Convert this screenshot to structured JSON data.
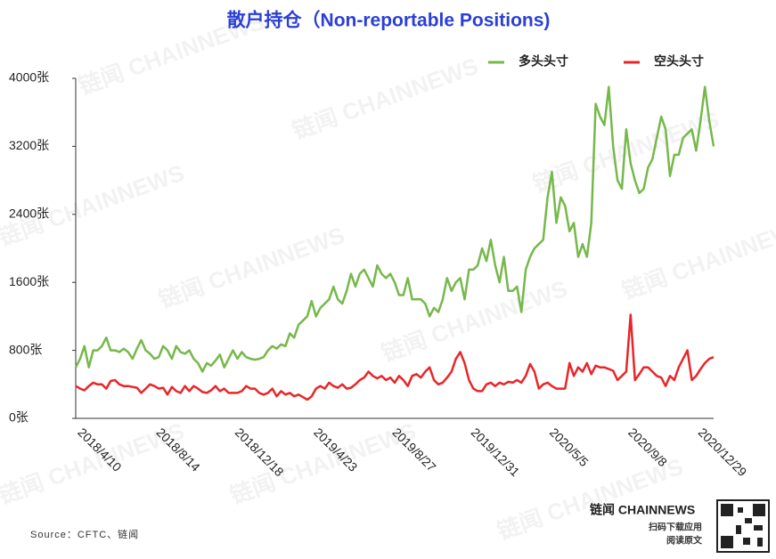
{
  "chart_data": {
    "type": "line",
    "title": "散户持仓（Non-reportable Positions)",
    "source": "Source：CFTC、链闻",
    "watermark": "链闻 CHAINNEWS",
    "footer": {
      "brand": "链闻 CHAINNEWS",
      "line1": "扫码下载应用",
      "line2": "阅读原文"
    },
    "legend": "top-right",
    "categories": [
      "2018/4/10",
      null,
      null,
      null,
      null,
      null,
      null,
      null,
      null,
      null,
      null,
      null,
      null,
      null,
      null,
      null,
      null,
      null,
      "2018/8/14",
      null,
      null,
      null,
      null,
      null,
      null,
      null,
      null,
      null,
      null,
      null,
      null,
      null,
      null,
      null,
      null,
      null,
      "2018/12/18",
      null,
      null,
      null,
      null,
      null,
      null,
      null,
      null,
      null,
      null,
      null,
      null,
      null,
      null,
      null,
      null,
      null,
      "2019/4/23",
      null,
      null,
      null,
      null,
      null,
      null,
      null,
      null,
      null,
      null,
      null,
      null,
      null,
      null,
      null,
      null,
      null,
      "2019/8/27",
      null,
      null,
      null,
      null,
      null,
      null,
      null,
      null,
      null,
      null,
      null,
      null,
      null,
      null,
      null,
      null,
      null,
      "2019/12/31",
      null,
      null,
      null,
      null,
      null,
      null,
      null,
      null,
      null,
      null,
      null,
      null,
      null,
      null,
      null,
      null,
      null,
      "2020/5/5",
      null,
      null,
      null,
      null,
      null,
      null,
      null,
      null,
      null,
      null,
      null,
      null,
      null,
      null,
      null,
      null,
      null,
      "2020/9/8",
      null,
      null,
      null,
      null,
      null,
      null,
      null,
      null,
      null,
      null,
      null,
      null,
      null,
      null,
      null,
      "2020/12/29",
      null,
      null,
      null,
      null
    ],
    "series": [
      {
        "name": "多头头寸",
        "color": "#76b84a",
        "values": [
          600,
          700,
          850,
          600,
          800,
          800,
          850,
          950,
          800,
          800,
          780,
          820,
          780,
          700,
          820,
          920,
          800,
          760,
          700,
          720,
          850,
          800,
          700,
          850,
          780,
          760,
          800,
          700,
          650,
          550,
          650,
          620,
          680,
          750,
          600,
          700,
          800,
          700,
          780,
          720,
          700,
          690,
          700,
          720,
          800,
          850,
          820,
          870,
          850,
          1000,
          950,
          1100,
          1150,
          1200,
          1380,
          1200,
          1300,
          1350,
          1400,
          1550,
          1400,
          1350,
          1500,
          1700,
          1550,
          1700,
          1750,
          1650,
          1550,
          1800,
          1700,
          1650,
          1700,
          1600,
          1450,
          1450,
          1650,
          1400,
          1400,
          1400,
          1350,
          1200,
          1300,
          1250,
          1400,
          1650,
          1500,
          1600,
          1650,
          1400,
          1750,
          1750,
          1800,
          2000,
          1850,
          2100,
          1800,
          1600,
          1900,
          1500,
          1500,
          1550,
          1250,
          1750,
          1900,
          2000,
          2050,
          2100,
          2600,
          2900,
          2300,
          2600,
          2500,
          2200,
          2300,
          1900,
          2050,
          1900,
          2300,
          3700,
          3550,
          3450,
          3900,
          3200,
          2800,
          2700,
          3400,
          3000,
          2800,
          2650,
          2700,
          2950,
          3050,
          3300,
          3550,
          3400,
          2850,
          3100,
          3100,
          3300,
          3350,
          3400,
          3150,
          3500,
          3900,
          3500,
          3200
        ]
      },
      {
        "name": "空头头寸",
        "color": "#e8262a",
        "values": [
          380,
          350,
          330,
          380,
          420,
          400,
          400,
          350,
          440,
          450,
          400,
          380,
          380,
          370,
          360,
          300,
          350,
          400,
          380,
          350,
          360,
          280,
          370,
          320,
          300,
          380,
          320,
          380,
          350,
          310,
          300,
          330,
          380,
          320,
          350,
          300,
          300,
          300,
          320,
          380,
          350,
          350,
          300,
          280,
          300,
          350,
          260,
          320,
          280,
          300,
          260,
          280,
          250,
          220,
          260,
          350,
          380,
          350,
          420,
          380,
          360,
          400,
          350,
          360,
          400,
          450,
          480,
          550,
          500,
          470,
          500,
          450,
          480,
          420,
          500,
          450,
          380,
          500,
          520,
          480,
          550,
          600,
          450,
          400,
          420,
          480,
          550,
          700,
          780,
          650,
          450,
          350,
          320,
          320,
          400,
          420,
          380,
          420,
          400,
          430,
          420,
          450,
          420,
          500,
          640,
          550,
          350,
          400,
          420,
          380,
          350,
          350,
          350,
          650,
          500,
          600,
          550,
          650,
          520,
          620,
          600,
          600,
          580,
          560,
          450,
          500,
          550,
          1220,
          450,
          520,
          600,
          600,
          550,
          500,
          480,
          380,
          500,
          450,
          600,
          700,
          800,
          450,
          500,
          580,
          650,
          700,
          720
        ]
      }
    ],
    "ylim": [
      0,
      4000
    ],
    "yticks": [
      {
        "value": 0,
        "label": "0张"
      },
      {
        "value": 800,
        "label": "800张"
      },
      {
        "value": 1600,
        "label": "1600张"
      },
      {
        "value": 2400,
        "label": "2400张"
      },
      {
        "value": 3200,
        "label": "3200张"
      },
      {
        "value": 4000,
        "label": "4000张"
      }
    ]
  }
}
